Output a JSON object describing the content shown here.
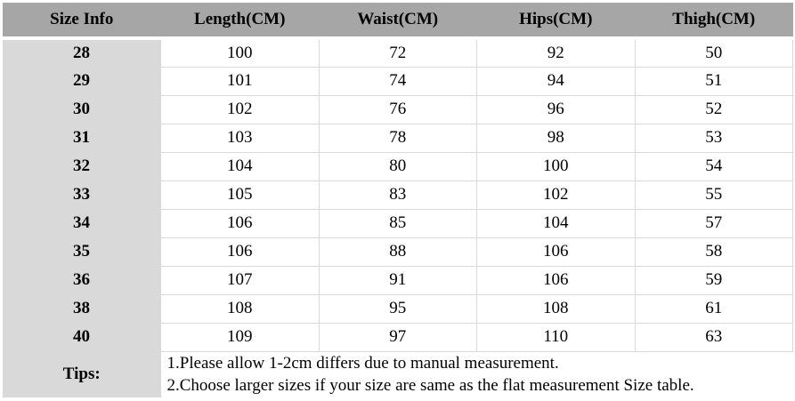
{
  "table": {
    "headers": [
      "Size Info",
      "Length(CM)",
      "Waist(CM)",
      "Hips(CM)",
      "Thigh(CM)"
    ],
    "rows": [
      {
        "size": "28",
        "length": "100",
        "waist": "72",
        "hips": "92",
        "thigh": "50"
      },
      {
        "size": "29",
        "length": "101",
        "waist": "74",
        "hips": "94",
        "thigh": "51"
      },
      {
        "size": "30",
        "length": "102",
        "waist": "76",
        "hips": "96",
        "thigh": "52"
      },
      {
        "size": "31",
        "length": "103",
        "waist": "78",
        "hips": "98",
        "thigh": "53"
      },
      {
        "size": "32",
        "length": "104",
        "waist": "80",
        "hips": "100",
        "thigh": "54"
      },
      {
        "size": "33",
        "length": "105",
        "waist": "83",
        "hips": "102",
        "thigh": "55"
      },
      {
        "size": "34",
        "length": "106",
        "waist": "85",
        "hips": "104",
        "thigh": "57"
      },
      {
        "size": "35",
        "length": "106",
        "waist": "88",
        "hips": "106",
        "thigh": "58"
      },
      {
        "size": "36",
        "length": "107",
        "waist": "91",
        "hips": "106",
        "thigh": "59"
      },
      {
        "size": "38",
        "length": "108",
        "waist": "95",
        "hips": "108",
        "thigh": "61"
      },
      {
        "size": "40",
        "length": "109",
        "waist": "97",
        "hips": "110",
        "thigh": "63"
      }
    ],
    "tips_label": "Tips:",
    "tips": [
      "1.Please allow 1-2cm differs due to manual measurement.",
      "2.Choose larger sizes if your size are same as the flat measurement Size table."
    ]
  },
  "colors": {
    "header_bg": "#a6a6a6",
    "size_column_bg": "#d9d9d9",
    "grid_line": "#d9d9d9",
    "text": "#000000",
    "background": "#ffffff"
  }
}
